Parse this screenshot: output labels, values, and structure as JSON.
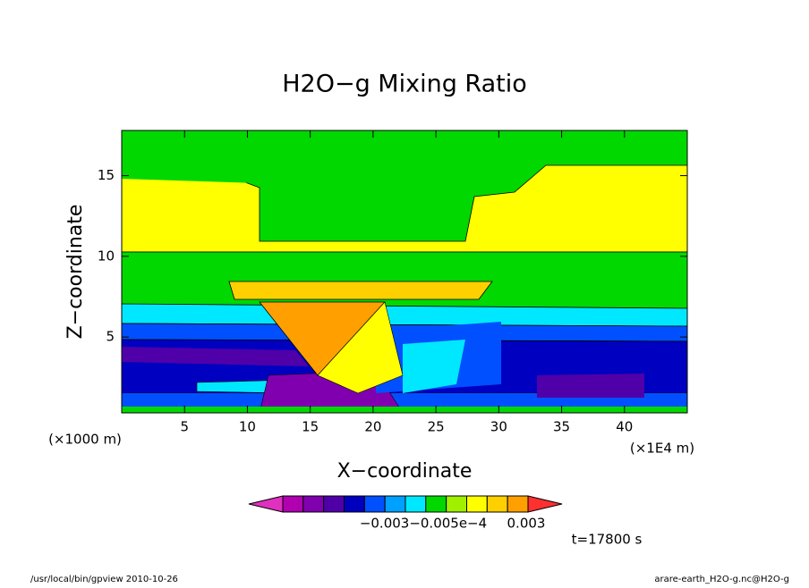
{
  "chart_data": {
    "type": "contour",
    "title": "H2O−g Mixing Ratio",
    "xlabel": "X−coordinate",
    "ylabel": "Z−coordinate",
    "x_unit_left": "(×1000 m)",
    "x_unit_right": "(×1E4 m)",
    "xlim": [
      0,
      45
    ],
    "xticks": [
      5,
      10,
      15,
      20,
      25,
      30,
      35,
      40
    ],
    "ylim": [
      0.3,
      17.8
    ],
    "yticks": [
      5,
      10,
      15
    ],
    "colorbar": {
      "colors": [
        "#e030c0",
        "#b000b0",
        "#8000b0",
        "#5000a8",
        "#0000c0",
        "#0050ff",
        "#00a0ff",
        "#00e8ff",
        "#00d800",
        "#a0f000",
        "#ffff00",
        "#ffd000",
        "#ffa000",
        "#ff3030"
      ],
      "labels": [
        "−0.003−0.005e−4",
        "0.003"
      ]
    },
    "time_label": "t=17800 s",
    "footer_left": "/usr/local/bin/gpview  2010-10-26",
    "footer_right": "arare-earth_H2O-g.nc@H2O-g"
  }
}
